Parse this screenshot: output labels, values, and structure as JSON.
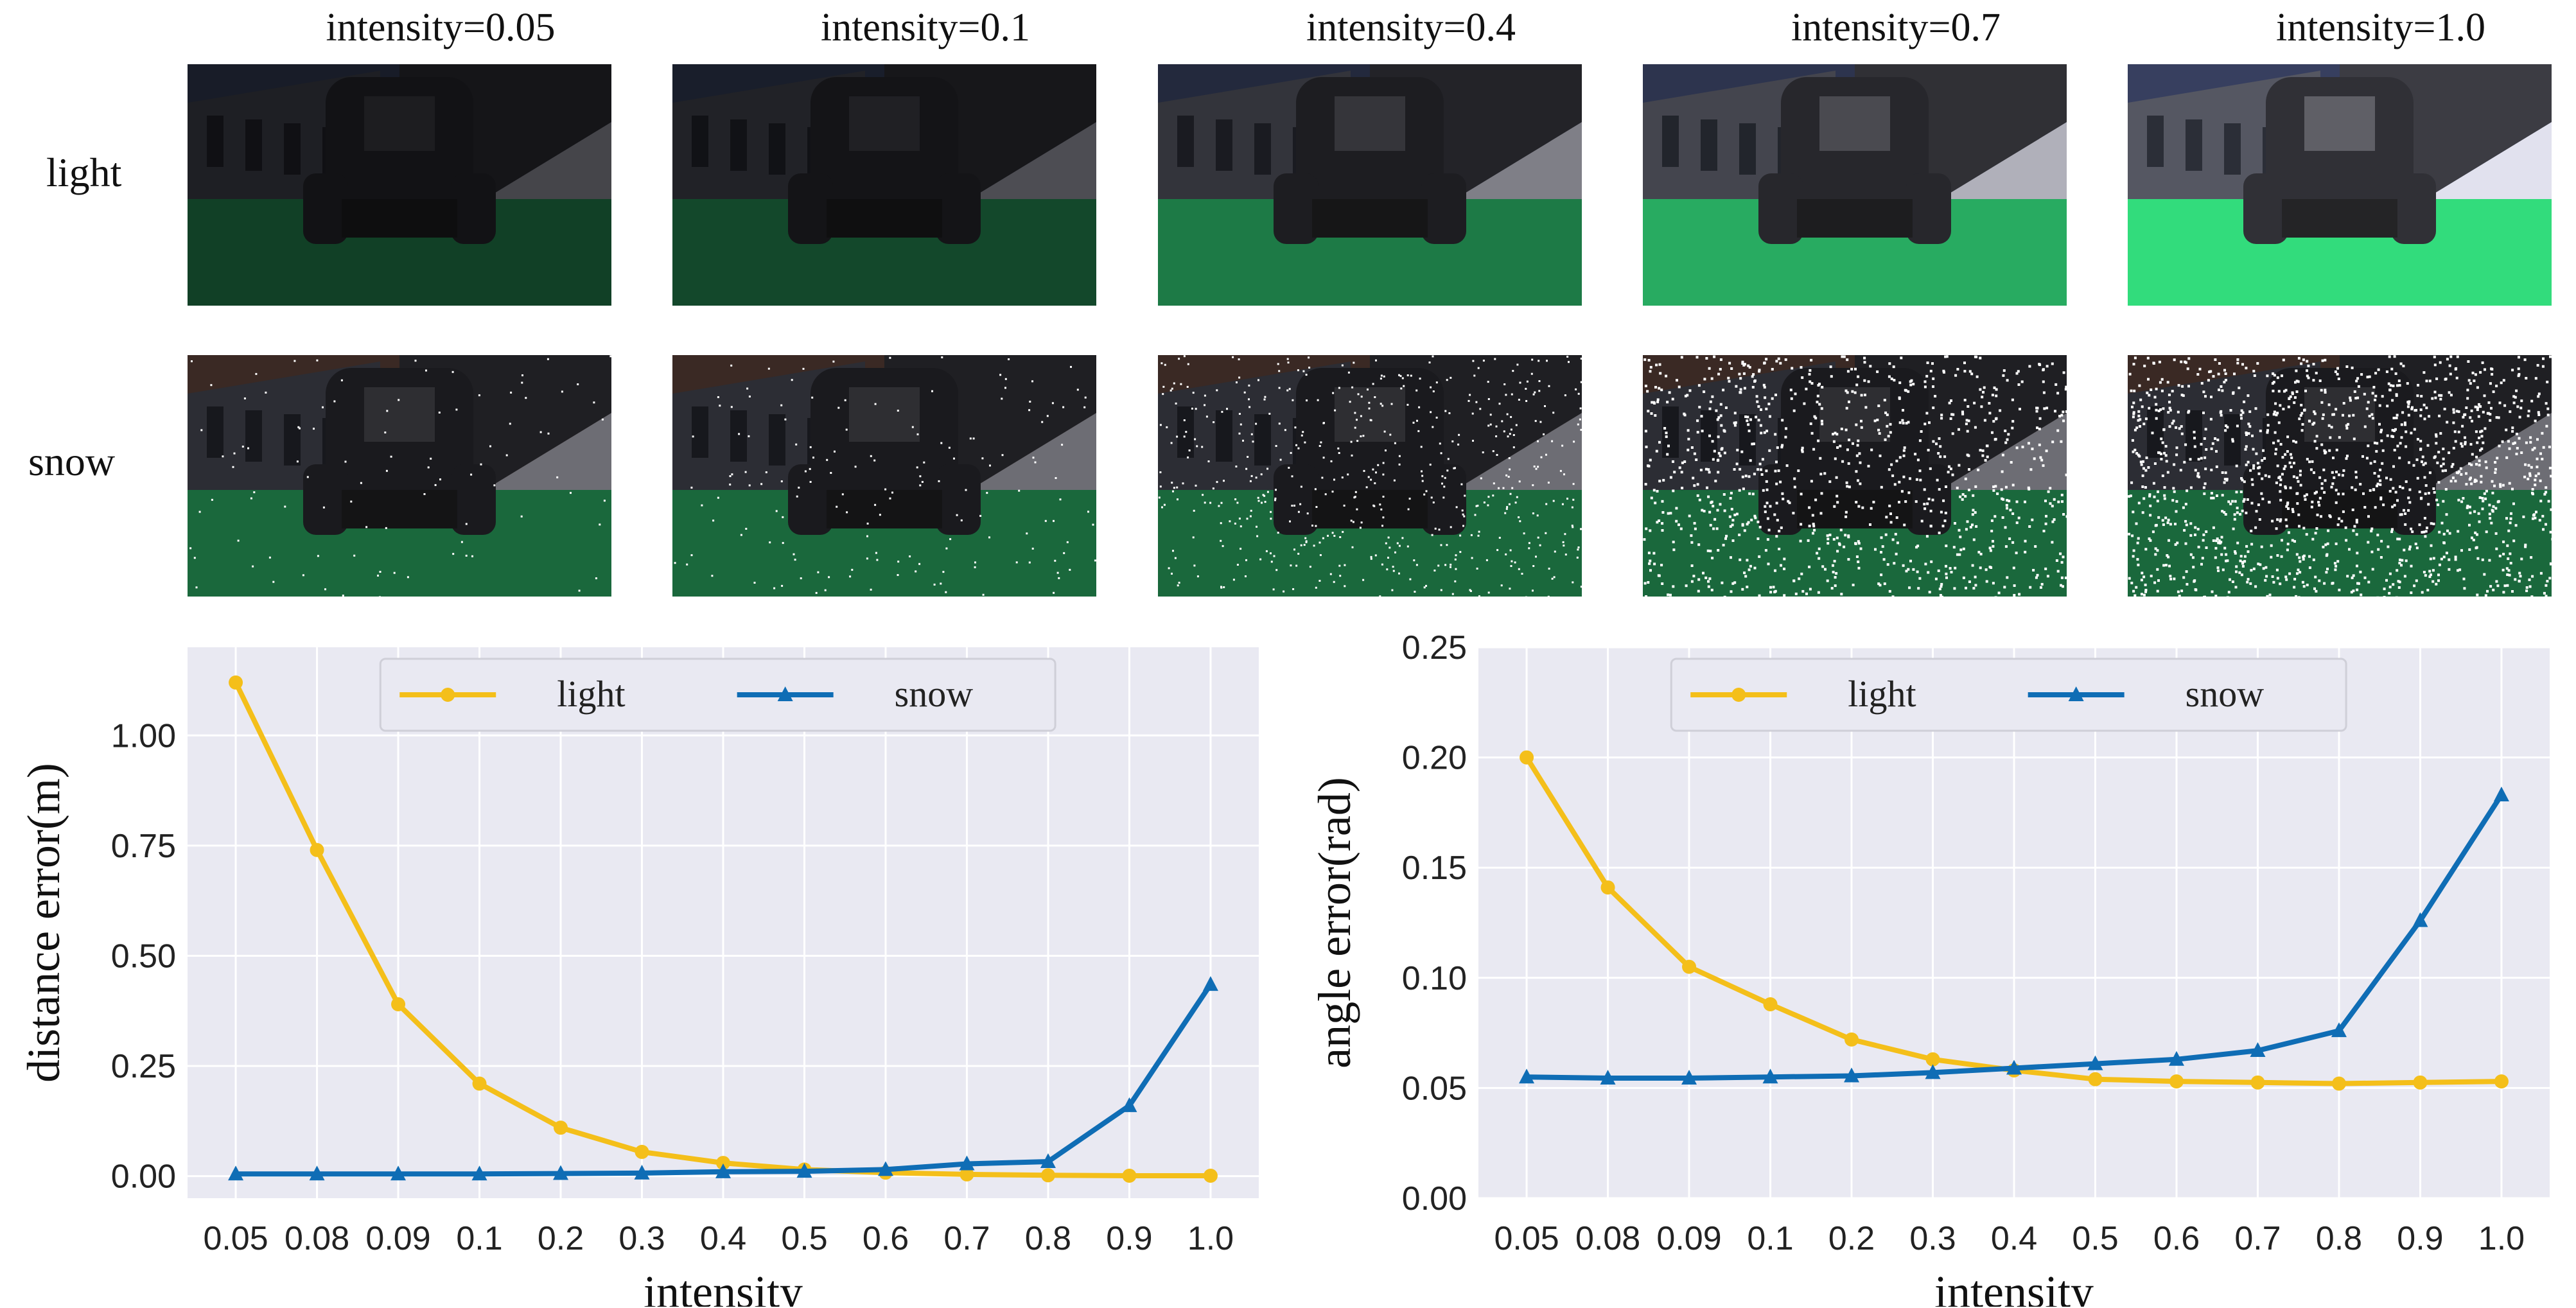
{
  "panels": {
    "columns": [
      "intensity=0.05",
      "intensity=0.1",
      "intensity=0.4",
      "intensity=0.7",
      "intensity=1.0"
    ],
    "rows": [
      "light",
      "snow"
    ],
    "light_levels": [
      0.05,
      0.1,
      0.4,
      0.7,
      1.0
    ],
    "snow_levels": [
      0.05,
      0.1,
      0.4,
      0.7,
      1.0
    ]
  },
  "colors": {
    "light": "#f4bf1a",
    "snow": "#0f6db5",
    "plot_bg": "#e9e9f2",
    "grid": "#ffffff"
  },
  "chart_data": [
    {
      "type": "line",
      "categories": [
        "0.05",
        "0.08",
        "0.09",
        "0.1",
        "0.2",
        "0.3",
        "0.4",
        "0.5",
        "0.6",
        "0.7",
        "0.8",
        "0.9",
        "1.0"
      ],
      "series": [
        {
          "name": "light",
          "values": [
            1.12,
            0.74,
            0.39,
            0.21,
            0.11,
            0.055,
            0.03,
            0.015,
            0.008,
            0.004,
            0.002,
            0.001,
            0.001
          ]
        },
        {
          "name": "snow",
          "values": [
            0.005,
            0.005,
            0.005,
            0.005,
            0.006,
            0.007,
            0.01,
            0.011,
            0.015,
            0.028,
            0.033,
            0.16,
            0.435
          ]
        }
      ],
      "xlabel": "intensity",
      "ylabel": "distance error(m)",
      "ylim": [
        -0.05,
        1.2
      ],
      "yticks": [
        0.0,
        0.25,
        0.5,
        0.75,
        1.0
      ],
      "ytick_labels": [
        "0.00",
        "0.25",
        "0.50",
        "0.75",
        "1.00"
      ],
      "grid": true,
      "legend": "top-center"
    },
    {
      "type": "line",
      "categories": [
        "0.05",
        "0.08",
        "0.09",
        "0.1",
        "0.2",
        "0.3",
        "0.4",
        "0.5",
        "0.6",
        "0.7",
        "0.8",
        "0.9",
        "1.0"
      ],
      "series": [
        {
          "name": "light",
          "values": [
            0.2,
            0.141,
            0.105,
            0.088,
            0.072,
            0.063,
            0.058,
            0.054,
            0.053,
            0.0525,
            0.052,
            0.0525,
            0.053
          ]
        },
        {
          "name": "snow",
          "values": [
            0.055,
            0.0545,
            0.0545,
            0.055,
            0.0555,
            0.057,
            0.059,
            0.061,
            0.063,
            0.067,
            0.076,
            0.126,
            0.183
          ]
        }
      ],
      "xlabel": "intensity",
      "ylabel": "angle error(rad)",
      "ylim": [
        0.0,
        0.25
      ],
      "yticks": [
        0.0,
        0.05,
        0.1,
        0.15,
        0.2,
        0.25
      ],
      "ytick_labels": [
        "0.00",
        "0.05",
        "0.10",
        "0.15",
        "0.20",
        "0.25"
      ],
      "grid": true,
      "legend": "top-center"
    }
  ]
}
